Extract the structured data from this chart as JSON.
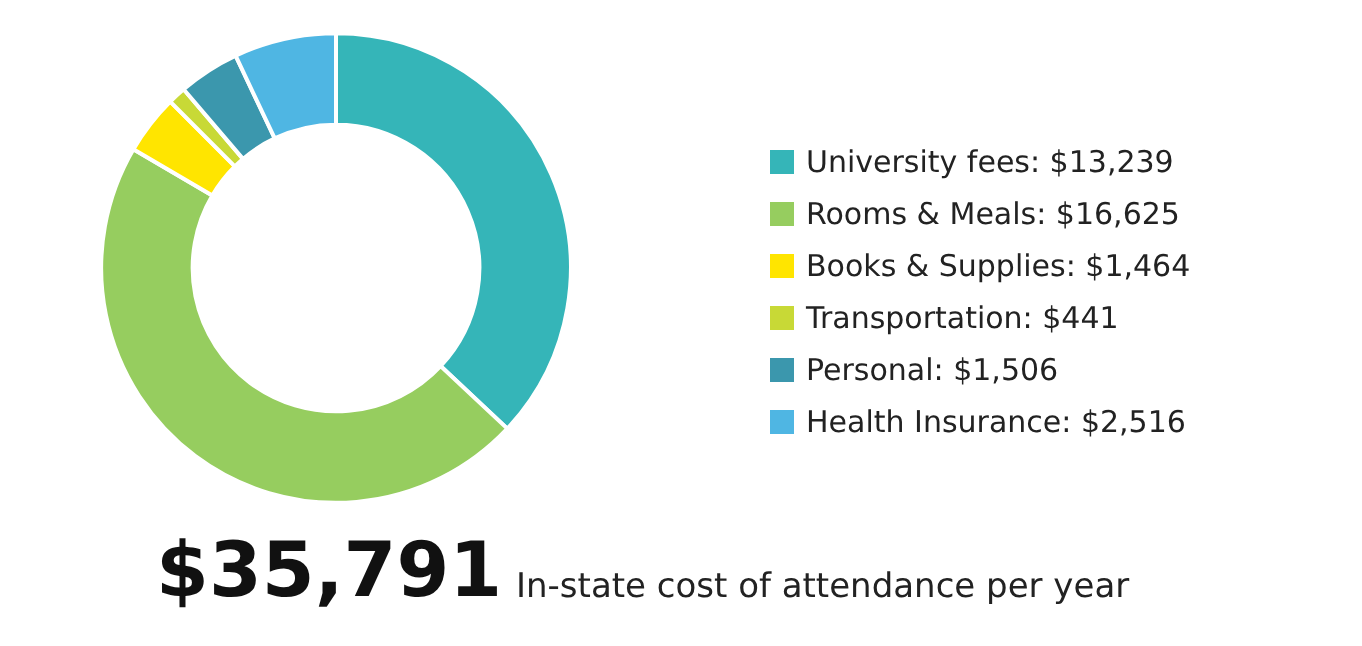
{
  "chart_data": {
    "type": "donut",
    "categories": [
      "University fees: $13,239",
      "Rooms & Meals: $16,625",
      "Books & Supplies: $1,464",
      "Transportation: $441",
      "Personal: $1,506",
      "Health Insurance: $2,516"
    ],
    "values": [
      13239,
      16625,
      1464,
      441,
      1506,
      2516
    ],
    "colors": [
      "#35b5b8",
      "#96cd5f",
      "#ffe500",
      "#c8d936",
      "#3b97ad",
      "#4fb6e3"
    ],
    "legend": "right",
    "annotations": [
      "$35,791",
      "In-state cost of attendance per year"
    ]
  }
}
